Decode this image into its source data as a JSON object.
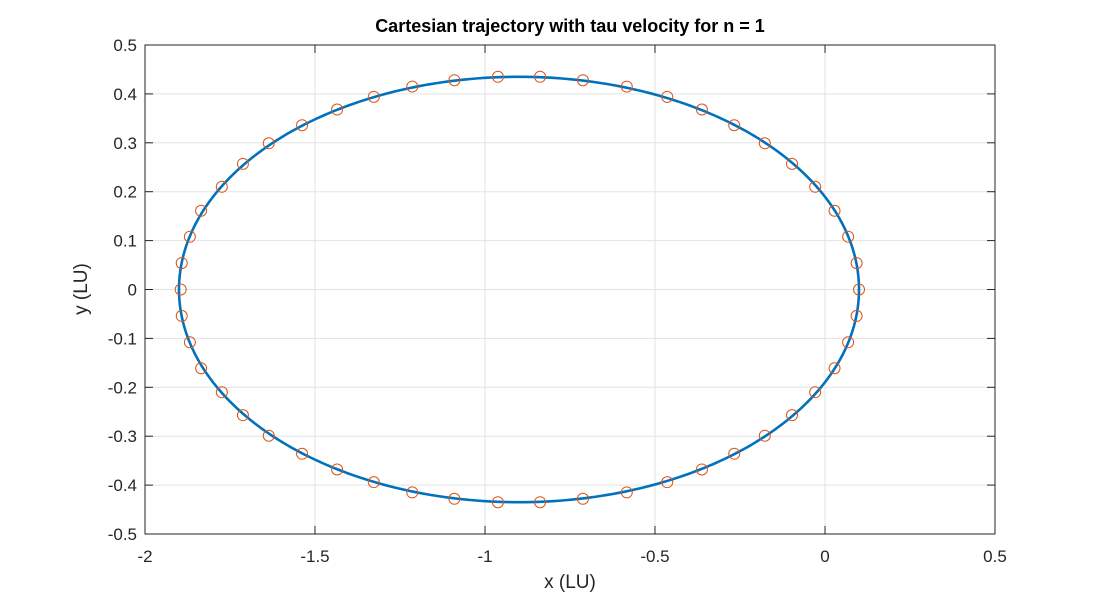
{
  "chart_data": {
    "type": "line",
    "title": "Cartesian trajectory with tau velocity for n = 1",
    "xlabel": "x (LU)",
    "ylabel": "y (LU)",
    "xlim": [
      -2,
      0.5
    ],
    "ylim": [
      -0.5,
      0.5
    ],
    "xticks": [
      -2,
      -1.5,
      -1,
      -0.5,
      0,
      0.5
    ],
    "xtick_labels": [
      "-2",
      "-1.5",
      "-1",
      "-0.5",
      "0",
      "0.5"
    ],
    "yticks": [
      -0.5,
      -0.4,
      -0.3,
      -0.2,
      -0.1,
      0,
      0.1,
      0.2,
      0.3,
      0.4,
      0.5
    ],
    "ytick_labels": [
      "-0.5",
      "-0.4",
      "-0.3",
      "-0.2",
      "-0.1",
      "0",
      "0.1",
      "0.2",
      "0.3",
      "0.4",
      "0.5"
    ],
    "grid": true,
    "series": [
      {
        "style": "line",
        "color": "#0072BD",
        "shape": "ellipse",
        "center": [
          -0.9,
          0
        ],
        "semi_axes": [
          1.0,
          0.435
        ]
      },
      {
        "style": "markers",
        "marker": "open-circle",
        "color": "#D95319",
        "x": [
          0.1,
          0.093,
          0.068,
          0.028,
          -0.029,
          -0.097,
          -0.177,
          -0.267,
          -0.362,
          -0.464,
          -0.583,
          -0.712,
          -0.838,
          -0.962,
          -1.09,
          -1.214,
          -1.327,
          -1.435,
          -1.538,
          -1.636,
          -1.712,
          -1.774,
          -1.835,
          -1.868,
          -1.892,
          -1.895,
          -1.892,
          -1.868,
          -1.835,
          -1.774,
          -1.712,
          -1.636,
          -1.538,
          -1.435,
          -1.327,
          -1.214,
          -1.09,
          -0.962,
          -0.838,
          -0.712,
          -0.583,
          -0.464,
          -0.362,
          -0.267,
          -0.177,
          -0.097,
          -0.029,
          0.028,
          0.068,
          0.093
        ],
        "y": [
          0,
          0.054,
          0.108,
          0.161,
          0.21,
          0.257,
          0.299,
          0.336,
          0.368,
          0.394,
          0.415,
          0.428,
          0.435,
          0.435,
          0.428,
          0.415,
          0.394,
          0.368,
          0.336,
          0.299,
          0.257,
          0.21,
          0.161,
          0.108,
          0.054,
          0,
          -0.054,
          -0.108,
          -0.161,
          -0.21,
          -0.257,
          -0.299,
          -0.336,
          -0.368,
          -0.394,
          -0.415,
          -0.428,
          -0.435,
          -0.435,
          -0.428,
          -0.415,
          -0.394,
          -0.368,
          -0.336,
          -0.299,
          -0.257,
          -0.21,
          -0.161,
          -0.108,
          -0.054
        ]
      }
    ]
  }
}
